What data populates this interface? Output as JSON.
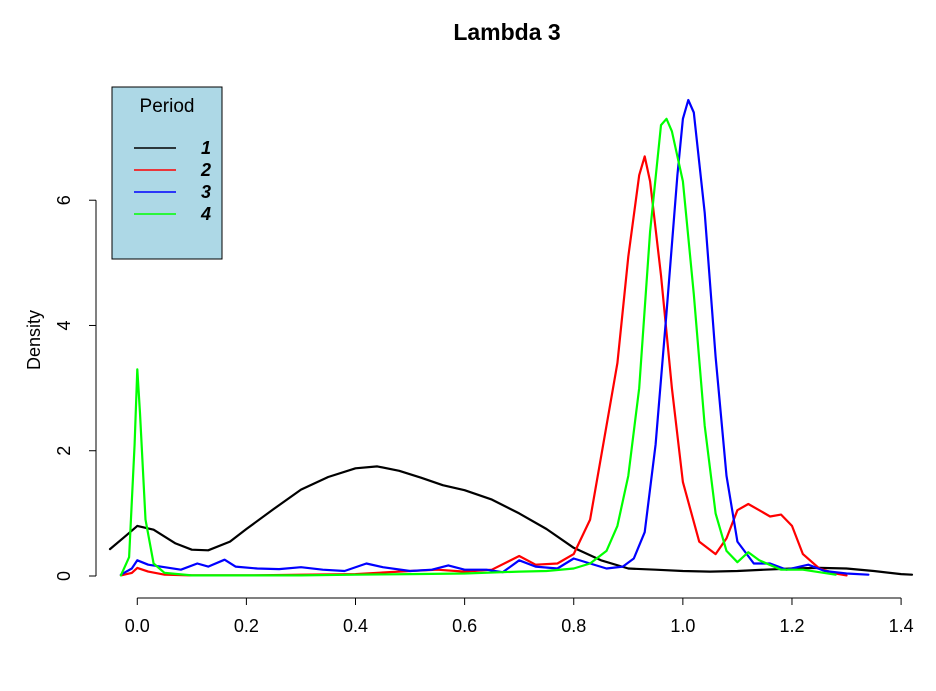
{
  "chart_data": {
    "type": "line",
    "title": "Lambda 3",
    "xlabel": "",
    "ylabel": "Density",
    "xlim": [
      -0.05,
      1.42
    ],
    "ylim": [
      0,
      7.6
    ],
    "x_ticks": [
      0.0,
      0.2,
      0.4,
      0.6,
      0.8,
      1.0,
      1.2,
      1.4
    ],
    "x_tick_labels": [
      "0.0",
      "0.2",
      "0.4",
      "0.6",
      "0.8",
      "1.0",
      "1.2",
      "1.4"
    ],
    "y_ticks": [
      0,
      2,
      4,
      6
    ],
    "y_tick_labels": [
      "0",
      "2",
      "4",
      "6"
    ],
    "grid": false,
    "legend": {
      "title": "Period",
      "position": "top-left",
      "background": "#add8e6",
      "entries": [
        "1",
        "2",
        "3",
        "4"
      ]
    },
    "series": [
      {
        "name": "1",
        "color": "#000000",
        "points": [
          [
            -0.05,
            0.43
          ],
          [
            -0.02,
            0.65
          ],
          [
            0.0,
            0.8
          ],
          [
            0.03,
            0.74
          ],
          [
            0.07,
            0.52
          ],
          [
            0.1,
            0.42
          ],
          [
            0.13,
            0.41
          ],
          [
            0.17,
            0.55
          ],
          [
            0.2,
            0.75
          ],
          [
            0.25,
            1.07
          ],
          [
            0.3,
            1.38
          ],
          [
            0.35,
            1.58
          ],
          [
            0.4,
            1.72
          ],
          [
            0.44,
            1.75
          ],
          [
            0.48,
            1.68
          ],
          [
            0.52,
            1.57
          ],
          [
            0.56,
            1.45
          ],
          [
            0.6,
            1.37
          ],
          [
            0.65,
            1.22
          ],
          [
            0.7,
            1.0
          ],
          [
            0.75,
            0.75
          ],
          [
            0.8,
            0.45
          ],
          [
            0.85,
            0.25
          ],
          [
            0.9,
            0.12
          ],
          [
            0.95,
            0.1
          ],
          [
            1.0,
            0.08
          ],
          [
            1.05,
            0.07
          ],
          [
            1.1,
            0.08
          ],
          [
            1.15,
            0.1
          ],
          [
            1.2,
            0.12
          ],
          [
            1.25,
            0.13
          ],
          [
            1.3,
            0.12
          ],
          [
            1.35,
            0.08
          ],
          [
            1.4,
            0.03
          ],
          [
            1.42,
            0.02
          ]
        ]
      },
      {
        "name": "2",
        "color": "#ff0000",
        "points": [
          [
            -0.03,
            0.01
          ],
          [
            -0.01,
            0.05
          ],
          [
            0.0,
            0.13
          ],
          [
            0.02,
            0.07
          ],
          [
            0.05,
            0.02
          ],
          [
            0.1,
            0.01
          ],
          [
            0.2,
            0.01
          ],
          [
            0.3,
            0.02
          ],
          [
            0.4,
            0.03
          ],
          [
            0.5,
            0.08
          ],
          [
            0.55,
            0.1
          ],
          [
            0.6,
            0.07
          ],
          [
            0.65,
            0.1
          ],
          [
            0.7,
            0.32
          ],
          [
            0.73,
            0.18
          ],
          [
            0.77,
            0.2
          ],
          [
            0.8,
            0.35
          ],
          [
            0.83,
            0.9
          ],
          [
            0.86,
            2.4
          ],
          [
            0.88,
            3.4
          ],
          [
            0.9,
            5.1
          ],
          [
            0.92,
            6.4
          ],
          [
            0.93,
            6.7
          ],
          [
            0.94,
            6.3
          ],
          [
            0.96,
            4.8
          ],
          [
            0.98,
            3.0
          ],
          [
            1.0,
            1.5
          ],
          [
            1.03,
            0.55
          ],
          [
            1.06,
            0.35
          ],
          [
            1.08,
            0.6
          ],
          [
            1.1,
            1.05
          ],
          [
            1.12,
            1.15
          ],
          [
            1.14,
            1.05
          ],
          [
            1.16,
            0.95
          ],
          [
            1.18,
            0.98
          ],
          [
            1.2,
            0.8
          ],
          [
            1.22,
            0.35
          ],
          [
            1.25,
            0.12
          ],
          [
            1.28,
            0.04
          ],
          [
            1.3,
            0.01
          ]
        ]
      },
      {
        "name": "3",
        "color": "#0000ff",
        "points": [
          [
            -0.03,
            0.02
          ],
          [
            -0.01,
            0.12
          ],
          [
            0.0,
            0.25
          ],
          [
            0.02,
            0.18
          ],
          [
            0.05,
            0.14
          ],
          [
            0.08,
            0.1
          ],
          [
            0.11,
            0.2
          ],
          [
            0.13,
            0.15
          ],
          [
            0.16,
            0.26
          ],
          [
            0.18,
            0.15
          ],
          [
            0.22,
            0.12
          ],
          [
            0.26,
            0.11
          ],
          [
            0.3,
            0.14
          ],
          [
            0.34,
            0.1
          ],
          [
            0.38,
            0.08
          ],
          [
            0.42,
            0.2
          ],
          [
            0.45,
            0.14
          ],
          [
            0.5,
            0.08
          ],
          [
            0.54,
            0.1
          ],
          [
            0.57,
            0.17
          ],
          [
            0.6,
            0.1
          ],
          [
            0.64,
            0.1
          ],
          [
            0.67,
            0.06
          ],
          [
            0.7,
            0.25
          ],
          [
            0.73,
            0.15
          ],
          [
            0.77,
            0.12
          ],
          [
            0.8,
            0.28
          ],
          [
            0.83,
            0.2
          ],
          [
            0.86,
            0.12
          ],
          [
            0.89,
            0.15
          ],
          [
            0.91,
            0.28
          ],
          [
            0.93,
            0.7
          ],
          [
            0.95,
            2.1
          ],
          [
            0.97,
            4.2
          ],
          [
            0.99,
            6.4
          ],
          [
            1.0,
            7.3
          ],
          [
            1.01,
            7.6
          ],
          [
            1.02,
            7.4
          ],
          [
            1.04,
            5.8
          ],
          [
            1.06,
            3.5
          ],
          [
            1.08,
            1.6
          ],
          [
            1.1,
            0.55
          ],
          [
            1.13,
            0.2
          ],
          [
            1.16,
            0.2
          ],
          [
            1.19,
            0.1
          ],
          [
            1.23,
            0.18
          ],
          [
            1.26,
            0.08
          ],
          [
            1.3,
            0.04
          ],
          [
            1.34,
            0.02
          ]
        ]
      },
      {
        "name": "4",
        "color": "#00ff00",
        "points": [
          [
            -0.03,
            0.01
          ],
          [
            -0.015,
            0.3
          ],
          [
            -0.005,
            2.1
          ],
          [
            0.0,
            3.3
          ],
          [
            0.005,
            2.6
          ],
          [
            0.015,
            0.9
          ],
          [
            0.03,
            0.2
          ],
          [
            0.05,
            0.05
          ],
          [
            0.1,
            0.01
          ],
          [
            0.2,
            0.01
          ],
          [
            0.3,
            0.01
          ],
          [
            0.4,
            0.02
          ],
          [
            0.5,
            0.03
          ],
          [
            0.6,
            0.04
          ],
          [
            0.7,
            0.07
          ],
          [
            0.75,
            0.08
          ],
          [
            0.8,
            0.12
          ],
          [
            0.83,
            0.2
          ],
          [
            0.86,
            0.4
          ],
          [
            0.88,
            0.8
          ],
          [
            0.9,
            1.6
          ],
          [
            0.92,
            3.0
          ],
          [
            0.94,
            5.5
          ],
          [
            0.96,
            7.2
          ],
          [
            0.97,
            7.3
          ],
          [
            0.98,
            7.1
          ],
          [
            1.0,
            6.3
          ],
          [
            1.02,
            4.5
          ],
          [
            1.04,
            2.4
          ],
          [
            1.06,
            1.0
          ],
          [
            1.08,
            0.4
          ],
          [
            1.1,
            0.22
          ],
          [
            1.12,
            0.38
          ],
          [
            1.14,
            0.25
          ],
          [
            1.18,
            0.1
          ],
          [
            1.22,
            0.1
          ],
          [
            1.25,
            0.06
          ],
          [
            1.28,
            0.02
          ]
        ]
      }
    ]
  }
}
